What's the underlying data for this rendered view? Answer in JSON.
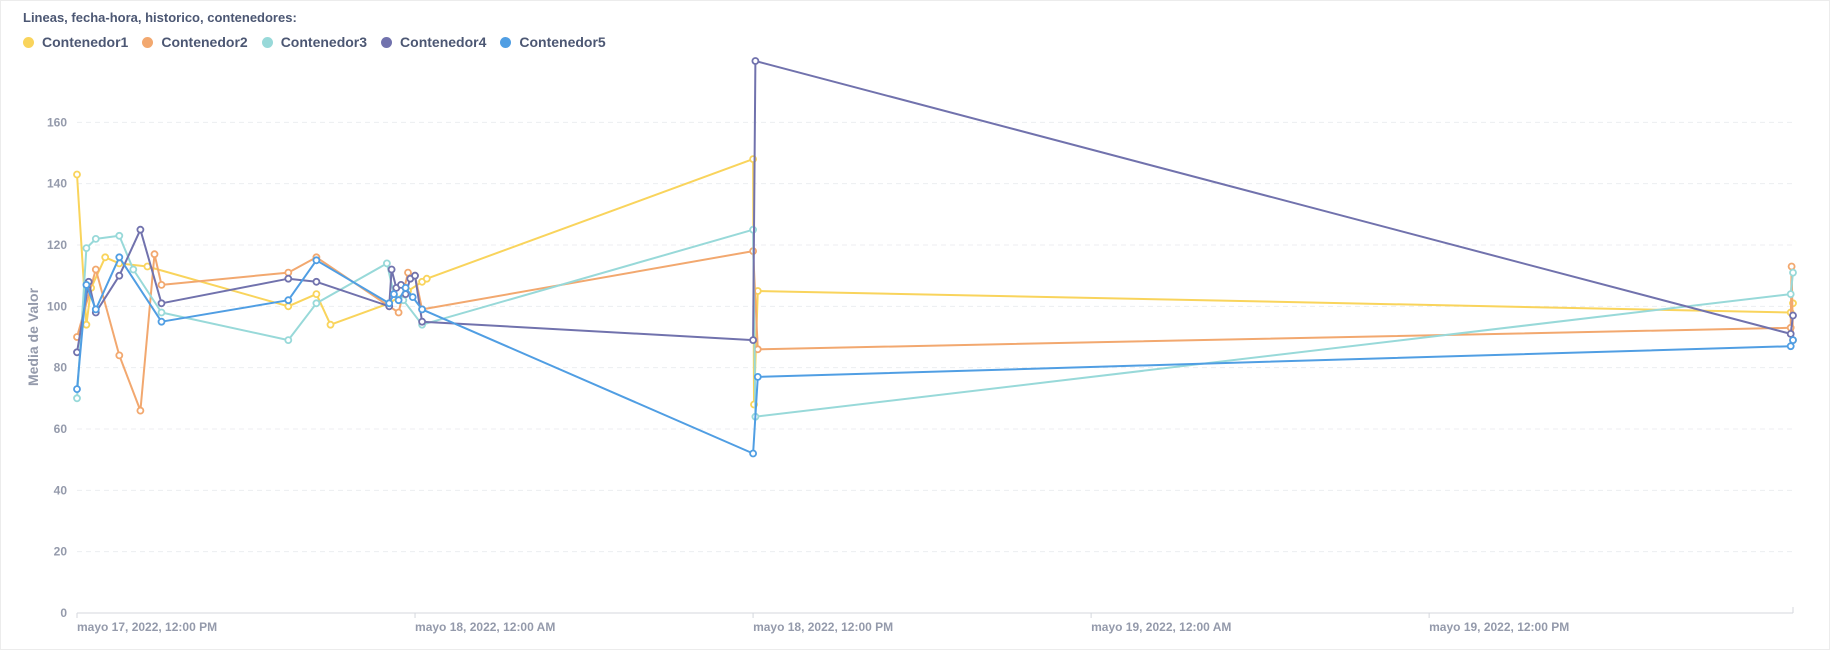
{
  "chart_data": {
    "type": "line",
    "title": "Lineas, fecha-hora, historico, contenedores:",
    "ylabel": "Media de Valor",
    "xlabel": "",
    "ylim": [
      0,
      180
    ],
    "yticks": [
      0,
      20,
      40,
      60,
      80,
      100,
      120,
      140,
      160
    ],
    "xlim": [
      "2022-05-17T12:00",
      "2022-05-20T00:55"
    ],
    "xticks": [
      {
        "t": "2022-05-17T12:00",
        "label": "mayo 17, 2022, 12:00 PM"
      },
      {
        "t": "2022-05-18T00:00",
        "label": "mayo 18, 2022, 12:00 AM"
      },
      {
        "t": "2022-05-18T12:00",
        "label": "mayo 18, 2022, 12:00 PM"
      },
      {
        "t": "2022-05-19T00:00",
        "label": "mayo 19, 2022, 12:00 AM"
      },
      {
        "t": "2022-05-19T12:00",
        "label": "mayo 19, 2022, 12:00 PM"
      }
    ],
    "grid": "horizontal dashed",
    "legend_position": "top-left",
    "series": [
      {
        "name": "Contenedor1",
        "color": "#f9d45c",
        "points": [
          [
            "2022-05-17T12:00",
            143
          ],
          [
            "2022-05-17T12:20",
            94
          ],
          [
            "2022-05-17T12:30",
            106
          ],
          [
            "2022-05-17T13:00",
            116
          ],
          [
            "2022-05-17T13:30",
            114
          ],
          [
            "2022-05-17T14:30",
            113
          ],
          [
            "2022-05-17T19:30",
            100
          ],
          [
            "2022-05-17T20:30",
            104
          ],
          [
            "2022-05-17T21:00",
            94
          ],
          [
            "2022-05-17T23:05",
            101
          ],
          [
            "2022-05-17T23:45",
            105
          ],
          [
            "2022-05-18T00:15",
            108
          ],
          [
            "2022-05-18T00:25",
            109
          ],
          [
            "2022-05-18T12:00",
            148
          ],
          [
            "2022-05-18T12:02",
            68
          ],
          [
            "2022-05-18T12:10",
            105
          ],
          [
            "2022-05-20T00:50",
            98
          ],
          [
            "2022-05-20T00:55",
            101
          ]
        ]
      },
      {
        "name": "Contenedor2",
        "color": "#f2a86f",
        "points": [
          [
            "2022-05-17T12:00",
            90
          ],
          [
            "2022-05-17T12:40",
            112
          ],
          [
            "2022-05-17T13:30",
            84
          ],
          [
            "2022-05-17T14:15",
            66
          ],
          [
            "2022-05-17T14:45",
            117
          ],
          [
            "2022-05-17T15:00",
            107
          ],
          [
            "2022-05-17T19:30",
            111
          ],
          [
            "2022-05-17T20:30",
            116
          ],
          [
            "2022-05-17T23:05",
            100
          ],
          [
            "2022-05-17T23:25",
            98
          ],
          [
            "2022-05-17T23:45",
            111
          ],
          [
            "2022-05-18T00:00",
            110
          ],
          [
            "2022-05-18T00:15",
            99
          ],
          [
            "2022-05-18T12:00",
            118
          ],
          [
            "2022-05-18T12:10",
            86
          ],
          [
            "2022-05-20T00:50",
            93
          ],
          [
            "2022-05-20T00:52",
            113
          ],
          [
            "2022-05-20T00:55",
            89
          ]
        ]
      },
      {
        "name": "Contenedor3",
        "color": "#98d9d9",
        "points": [
          [
            "2022-05-17T12:00",
            70
          ],
          [
            "2022-05-17T12:20",
            119
          ],
          [
            "2022-05-17T12:40",
            122
          ],
          [
            "2022-05-17T13:30",
            123
          ],
          [
            "2022-05-17T14:00",
            112
          ],
          [
            "2022-05-17T15:00",
            98
          ],
          [
            "2022-05-17T19:30",
            89
          ],
          [
            "2022-05-17T20:30",
            101
          ],
          [
            "2022-05-17T23:00",
            114
          ],
          [
            "2022-05-17T23:15",
            104
          ],
          [
            "2022-05-17T23:35",
            102
          ],
          [
            "2022-05-18T00:15",
            94
          ],
          [
            "2022-05-18T12:00",
            125
          ],
          [
            "2022-05-18T12:05",
            64
          ],
          [
            "2022-05-20T00:50",
            104
          ],
          [
            "2022-05-20T00:55",
            111
          ]
        ]
      },
      {
        "name": "Contenedor4",
        "color": "#7172ad",
        "points": [
          [
            "2022-05-17T12:00",
            85
          ],
          [
            "2022-05-17T12:25",
            108
          ],
          [
            "2022-05-17T12:40",
            98
          ],
          [
            "2022-05-17T13:30",
            110
          ],
          [
            "2022-05-17T14:15",
            125
          ],
          [
            "2022-05-17T15:00",
            101
          ],
          [
            "2022-05-17T19:30",
            109
          ],
          [
            "2022-05-17T20:30",
            108
          ],
          [
            "2022-05-17T23:05",
            100
          ],
          [
            "2022-05-17T23:10",
            112
          ],
          [
            "2022-05-17T23:20",
            106
          ],
          [
            "2022-05-17T23:30",
            107
          ],
          [
            "2022-05-17T23:40",
            104
          ],
          [
            "2022-05-17T23:50",
            109
          ],
          [
            "2022-05-18T00:00",
            110
          ],
          [
            "2022-05-18T00:15",
            95
          ],
          [
            "2022-05-18T12:00",
            89
          ],
          [
            "2022-05-18T12:05",
            180
          ],
          [
            "2022-05-20T00:50",
            91
          ],
          [
            "2022-05-20T00:55",
            97
          ]
        ]
      },
      {
        "name": "Contenedor5",
        "color": "#509ee3",
        "points": [
          [
            "2022-05-17T12:00",
            73
          ],
          [
            "2022-05-17T12:20",
            107
          ],
          [
            "2022-05-17T12:40",
            99
          ],
          [
            "2022-05-17T13:30",
            116
          ],
          [
            "2022-05-17T15:00",
            95
          ],
          [
            "2022-05-17T19:30",
            102
          ],
          [
            "2022-05-17T20:30",
            115
          ],
          [
            "2022-05-17T23:05",
            101
          ],
          [
            "2022-05-17T23:15",
            104
          ],
          [
            "2022-05-17T23:25",
            102
          ],
          [
            "2022-05-17T23:40",
            106
          ],
          [
            "2022-05-17T23:55",
            103
          ],
          [
            "2022-05-18T00:15",
            99
          ],
          [
            "2022-05-18T12:00",
            52
          ],
          [
            "2022-05-18T12:10",
            77
          ],
          [
            "2022-05-20T00:50",
            87
          ],
          [
            "2022-05-20T00:55",
            89
          ]
        ]
      }
    ]
  }
}
